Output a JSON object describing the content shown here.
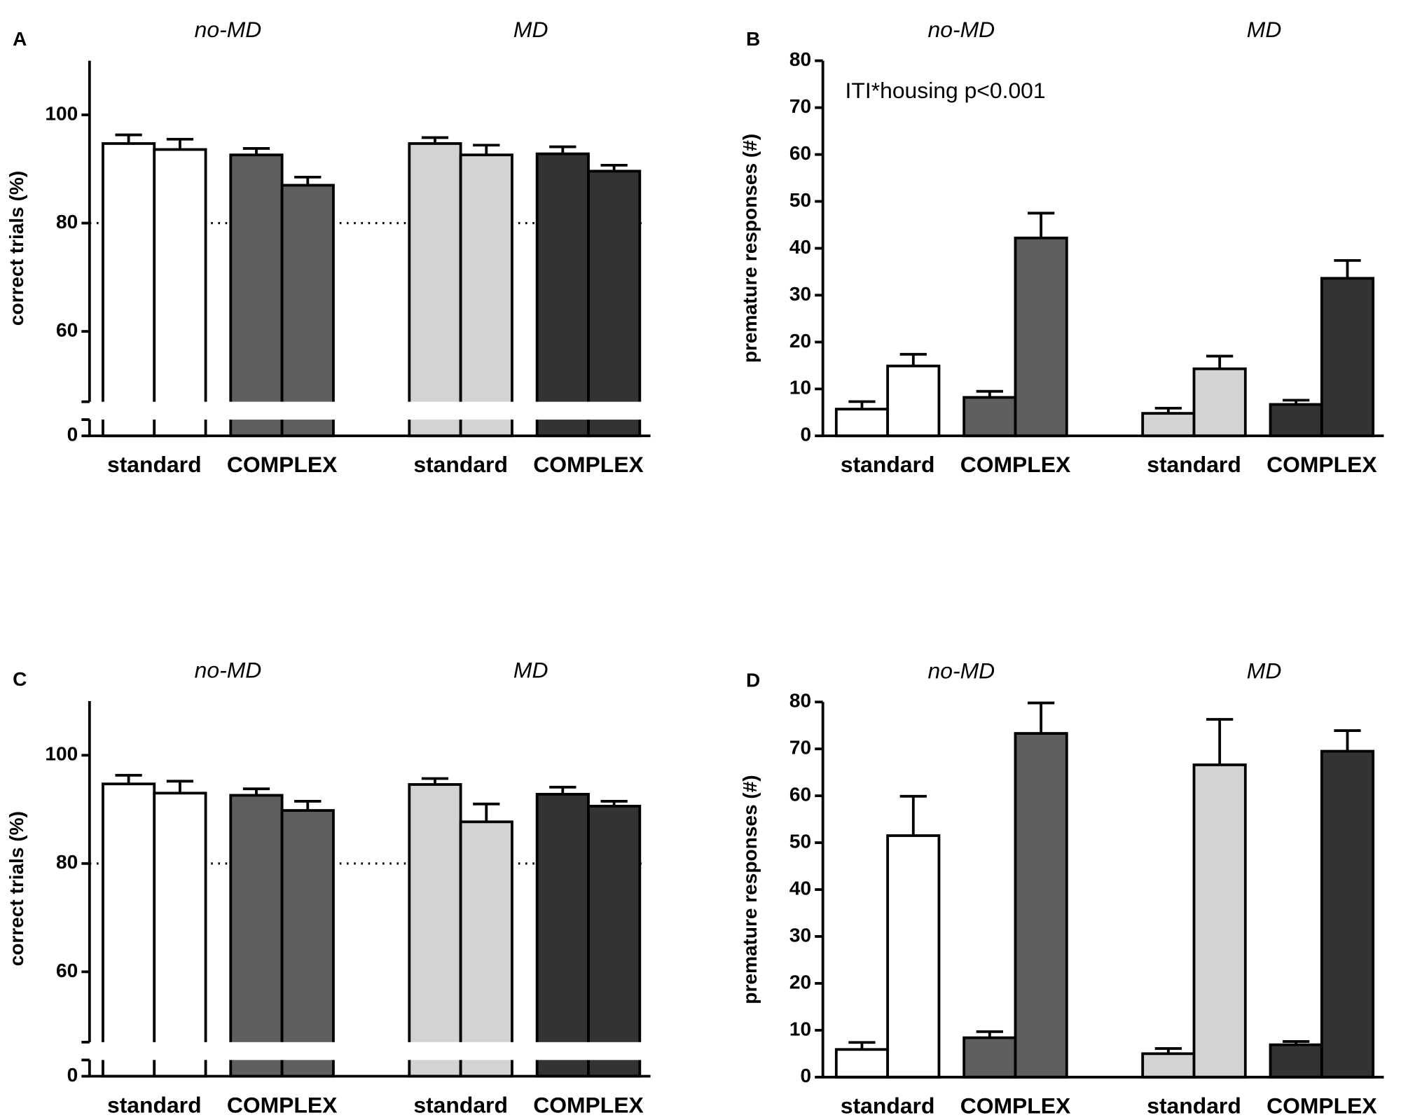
{
  "chart_data": [
    {
      "type": "bar",
      "panel": "A",
      "groups": [
        "no-MD",
        "MD"
      ],
      "categories": [
        "standard",
        "COMPLEX",
        "standard",
        "COMPLEX"
      ],
      "category_colors": [
        "#ffffff",
        "#5f5f5f",
        "#d3d3d3",
        "#333333"
      ],
      "ylabel": "correct trials (%)",
      "ylim": [
        0,
        110
      ],
      "ybreak": [
        3,
        47
      ],
      "yticks": [
        0,
        60,
        80,
        100
      ],
      "reference_line": 80,
      "series": [
        {
          "values": [
            94.7,
            92.6,
            94.7,
            92.8
          ],
          "errors": [
            1.6,
            1.2,
            1.1,
            1.3
          ]
        },
        {
          "values": [
            93.6,
            87.0,
            92.6,
            89.6
          ],
          "errors": [
            1.9,
            1.5,
            1.8,
            1.1
          ]
        }
      ]
    },
    {
      "type": "bar",
      "panel": "B",
      "groups": [
        "no-MD",
        "MD"
      ],
      "categories": [
        "standard",
        "COMPLEX",
        "standard",
        "COMPLEX"
      ],
      "category_colors": [
        "#ffffff",
        "#5f5f5f",
        "#d3d3d3",
        "#333333"
      ],
      "ylabel": "premature responses (#)",
      "annotation": "ITI*housing p<0.001",
      "ylim": [
        0,
        80
      ],
      "yticks": [
        0,
        10,
        20,
        30,
        40,
        50,
        60,
        70,
        80
      ],
      "series": [
        {
          "values": [
            5.7,
            8.2,
            4.8,
            6.7
          ],
          "errors": [
            1.6,
            1.3,
            1.1,
            0.9
          ]
        },
        {
          "values": [
            14.9,
            42.2,
            14.3,
            33.6
          ],
          "errors": [
            2.5,
            5.3,
            2.7,
            3.8
          ]
        }
      ]
    },
    {
      "type": "bar",
      "panel": "C",
      "groups": [
        "no-MD",
        "MD"
      ],
      "categories": [
        "standard",
        "COMPLEX",
        "standard",
        "COMPLEX"
      ],
      "category_colors": [
        "#ffffff",
        "#5f5f5f",
        "#d3d3d3",
        "#333333"
      ],
      "ylabel": "correct trials (%)",
      "ylim": [
        0,
        110
      ],
      "ybreak": [
        3,
        47
      ],
      "yticks": [
        0,
        60,
        80,
        100
      ],
      "reference_line": 80,
      "series": [
        {
          "values": [
            94.7,
            92.6,
            94.6,
            92.8
          ],
          "errors": [
            1.6,
            1.2,
            1.1,
            1.3
          ]
        },
        {
          "values": [
            93.0,
            89.8,
            87.7,
            90.6
          ],
          "errors": [
            2.2,
            1.7,
            3.3,
            0.9
          ]
        }
      ]
    },
    {
      "type": "bar",
      "panel": "D",
      "groups": [
        "no-MD",
        "MD"
      ],
      "categories": [
        "standard",
        "COMPLEX",
        "standard",
        "COMPLEX"
      ],
      "category_colors": [
        "#ffffff",
        "#5f5f5f",
        "#d3d3d3",
        "#333333"
      ],
      "ylabel": "premature responses (#)",
      "ylim": [
        0,
        80
      ],
      "yticks": [
        0,
        10,
        20,
        30,
        40,
        50,
        60,
        70,
        80
      ],
      "series": [
        {
          "values": [
            5.9,
            8.4,
            5.0,
            6.9
          ],
          "errors": [
            1.5,
            1.3,
            1.1,
            0.7
          ]
        },
        {
          "values": [
            51.5,
            73.3,
            66.6,
            69.5
          ],
          "errors": [
            8.4,
            6.5,
            9.7,
            4.4
          ]
        }
      ]
    }
  ]
}
